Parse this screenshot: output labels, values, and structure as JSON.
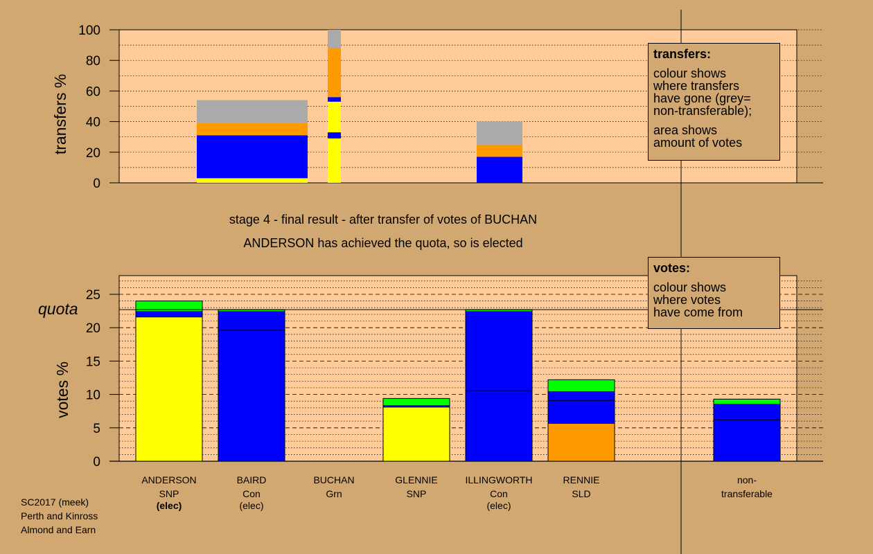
{
  "chart_data": [
    {
      "type": "bar",
      "stacked": true,
      "ylabel": "transfers %",
      "ylim": [
        0,
        100
      ],
      "yticks": [
        0,
        20,
        40,
        60,
        80,
        100
      ],
      "bars": [
        {
          "candidate": "ANDERSON",
          "segments": [
            {
              "color": "#ffff00",
              "value": 3
            },
            {
              "color": "#0000ff",
              "value": 28
            },
            {
              "color": "#ff9900",
              "value": 8
            },
            {
              "color": "#aaaaaa",
              "value": 15
            }
          ]
        },
        {
          "candidate": "BUCHAN",
          "segments": [
            {
              "color": "#ffff00",
              "value": 29
            },
            {
              "color": "#0000ff",
              "value": 4
            },
            {
              "color": "#ffff00",
              "value": 20
            },
            {
              "color": "#0000ff",
              "value": 3
            },
            {
              "color": "#ff9900",
              "value": 32
            },
            {
              "color": "#aaaaaa",
              "value": 12
            }
          ]
        },
        {
          "candidate": "ILLINGWORTH",
          "segments": [
            {
              "color": "#0000ff",
              "value": 17
            },
            {
              "color": "#ff9900",
              "value": 8
            },
            {
              "color": "#aaaaaa",
              "value": 15
            }
          ]
        }
      ]
    },
    {
      "type": "bar",
      "stacked": true,
      "ylabel": "votes %",
      "ylim": [
        0,
        28
      ],
      "yticks": [
        0,
        5,
        10,
        15,
        20,
        25
      ],
      "quota": 22.7,
      "quota_label": "quota",
      "categories": [
        {
          "name": "ANDERSON",
          "party": "SNP",
          "status": "(elec)",
          "segments": [
            {
              "color": "#ffff00",
              "value": 21.6
            },
            {
              "color": "#0000ff",
              "value": 0.9
            },
            {
              "color": "#00ff00",
              "value": 1.5
            }
          ],
          "lines": [
            21.6
          ]
        },
        {
          "name": "BAIRD",
          "party": "Con",
          "status": "(elec)",
          "segments": [
            {
              "color": "#0000ff",
              "value": 22.5
            },
            {
              "color": "#00ff00",
              "value": 0.2
            }
          ],
          "lines": [
            19.6
          ]
        },
        {
          "name": "BUCHAN",
          "party": "Grn",
          "status": "",
          "segments": [],
          "lines": []
        },
        {
          "name": "GLENNIE",
          "party": "SNP",
          "status": "",
          "segments": [
            {
              "color": "#ffff00",
              "value": 8.1
            },
            {
              "color": "#0000ff",
              "value": 0.3
            },
            {
              "color": "#00ff00",
              "value": 1.0
            }
          ],
          "lines": [
            8.1
          ]
        },
        {
          "name": "ILLINGWORTH",
          "party": "Con",
          "status": "(elec)",
          "segments": [
            {
              "color": "#0000ff",
              "value": 22.5
            },
            {
              "color": "#00ff00",
              "value": 0.2
            }
          ],
          "lines": [
            10.6
          ]
        },
        {
          "name": "RENNIE",
          "party": "SLD",
          "status": "",
          "segments": [
            {
              "color": "#ff9900",
              "value": 5.6
            },
            {
              "color": "#0000ff",
              "value": 4.9
            },
            {
              "color": "#00ff00",
              "value": 1.7
            }
          ],
          "lines": [
            9.1
          ]
        },
        {
          "name": "non-",
          "party": "transferable",
          "status": "",
          "segments": [
            {
              "color": "#0000ff",
              "value": 8.6
            },
            {
              "color": "#00ff00",
              "value": 0.7
            }
          ],
          "lines": [
            6.2
          ]
        }
      ]
    }
  ],
  "captions": {
    "line1": "stage 4 - final result - after transfer of votes of BUCHAN",
    "line2": "ANDERSON has achieved the quota, so is elected"
  },
  "transfers_box": {
    "title": "transfers:",
    "p1": [
      "colour shows",
      "where transfers",
      "have gone (grey=",
      "non-transferable);"
    ],
    "p2": [
      "area shows",
      "amount of votes"
    ]
  },
  "votes_box": {
    "title": "votes:",
    "p1": [
      "colour shows",
      "where votes",
      "have come from"
    ]
  },
  "footer": [
    "SC2017 (meek)",
    "Perth and Kinross",
    "Almond and Earn"
  ],
  "colors": {
    "background": "#d2a872",
    "plot": "#ffcc99",
    "yellow": "#ffff00",
    "blue": "#0000ff",
    "orange": "#ff9900",
    "grey": "#aaaaaa",
    "green": "#00ff00"
  }
}
